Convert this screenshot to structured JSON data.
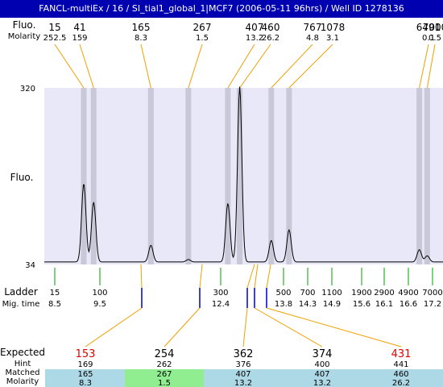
{
  "window": {
    "title": "FANCL-multiEx / 16 / SI_tial1_global_1|MCF7 (2006-05-11 96hrs) / Well ID 1278136"
  },
  "colors": {
    "title_bar": "#0000b0",
    "plot_background": "#e8e8f8",
    "peak_band": "#c8c8d8",
    "peak_connector": "#f0a000",
    "ladder_green": "#00a000",
    "ladder_blue": "#0000c0",
    "expected_red": "#e00000",
    "row_highlight_blue": "#add8e6",
    "row_highlight_green": "#90ee90"
  },
  "chart_data": {
    "type": "line",
    "top_rows": {
      "labels": [
        "Fluo.",
        "Molarity"
      ],
      "sizes": [
        "15",
        "41",
        "165",
        "267",
        "407",
        "460",
        "767",
        "1078",
        "6491",
        "7000"
      ],
      "molarities": [
        "252.5",
        "159",
        "8.3",
        "1.5",
        "13.2",
        "26.2",
        "4.8",
        "3.1",
        "0.1",
        "0.5"
      ]
    },
    "y_axis": {
      "label": "Fluo.",
      "max_label": "320",
      "min_label": "34",
      "range": [
        34,
        320
      ]
    },
    "x_range": [
      7.5,
      17.6
    ],
    "peaks": [
      {
        "size": "15",
        "mig": 8.5,
        "height": 165
      },
      {
        "size": "41",
        "mig": 8.75,
        "height": 135
      },
      {
        "size": "165",
        "mig": 10.2,
        "height": 65
      },
      {
        "size": "267",
        "mig": 11.15,
        "height": 42
      },
      {
        "size": "407",
        "mig": 12.15,
        "height": 133
      },
      {
        "size": "460",
        "mig": 12.45,
        "height": 322
      },
      {
        "size": "767",
        "mig": 13.25,
        "height": 73
      },
      {
        "size": "1078",
        "mig": 13.7,
        "height": 90
      },
      {
        "size": "6491",
        "mig": 17.0,
        "height": 58
      },
      {
        "size": "7000",
        "mig": 17.2,
        "height": 48
      }
    ],
    "baseline": 38,
    "ladder": {
      "title": "Ladder",
      "subtitle": "Mig. time",
      "entries": [
        {
          "size": "15",
          "time": "8.5"
        },
        {
          "size": "100",
          "time": "9.5"
        },
        {
          "size": "300",
          "time": "12.4"
        },
        {
          "size": "500",
          "time": "13.8"
        },
        {
          "size": "700",
          "time": "14.3"
        },
        {
          "size": "1100",
          "time": "14.9"
        },
        {
          "size": "1900",
          "time": "15.6"
        },
        {
          "size": "2900",
          "time": "16.1"
        },
        {
          "size": "4900",
          "time": "16.6"
        },
        {
          "size": "7000",
          "time": "17.2"
        }
      ]
    },
    "expected": {
      "row_labels": [
        "Expected",
        "Hint",
        "Matched",
        "Molarity"
      ],
      "columns": [
        {
          "expected": "153",
          "hint": "169",
          "matched": "165",
          "molarity": "8.3",
          "expected_red": true,
          "highlight": "blue"
        },
        {
          "expected": "254",
          "hint": "262",
          "matched": "267",
          "molarity": "1.5",
          "expected_red": false,
          "highlight": "green"
        },
        {
          "expected": "362",
          "hint": "376",
          "matched": "407",
          "molarity": "13.2",
          "expected_red": false,
          "highlight": "blue"
        },
        {
          "expected": "374",
          "hint": "400",
          "matched": "407",
          "molarity": "13.2",
          "expected_red": false,
          "highlight": "blue"
        },
        {
          "expected": "431",
          "hint": "441",
          "matched": "460",
          "molarity": "26.2",
          "expected_red": true,
          "highlight": "blue"
        }
      ]
    }
  }
}
